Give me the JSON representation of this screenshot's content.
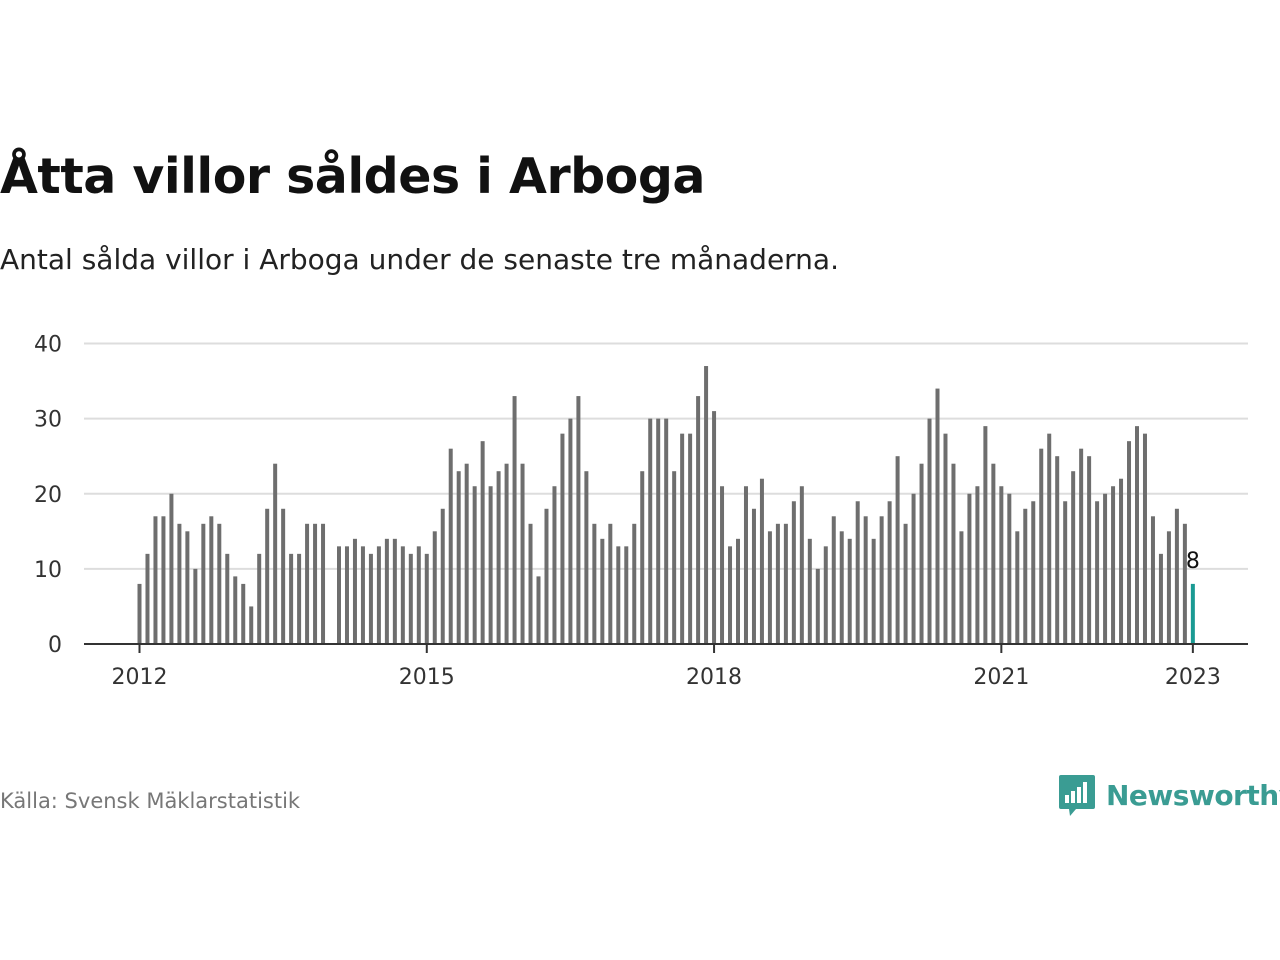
{
  "header": {
    "title": "Åtta villor såldes i Arboga",
    "subtitle": "Antal sålda villor i Arboga under de senaste tre månaderna."
  },
  "footer": {
    "source": "Källa: Svensk Mäklarstatistik",
    "logo_text": "Newsworthy",
    "logo_icon": "bar-chart-speech-bubble-icon"
  },
  "colors": {
    "bar": "#6e6e6e",
    "highlight": "#1a9a93",
    "grid": "#dddddd",
    "axis": "#333333",
    "brand": "#3a9c93"
  },
  "chart_data": {
    "type": "bar",
    "title": "Åtta villor såldes i Arboga",
    "subtitle": "Antal sålda villor i Arboga under de senaste tre månaderna.",
    "xlabel": "",
    "ylabel": "",
    "x_tick_labels": [
      "2012",
      "2015",
      "2018",
      "2021",
      "2023"
    ],
    "y_tick_labels": [
      "0",
      "10",
      "20",
      "30",
      "40"
    ],
    "ylim": [
      0,
      40
    ],
    "grid": true,
    "x": [
      "2012-01",
      "2012-02",
      "2012-03",
      "2012-04",
      "2012-05",
      "2012-06",
      "2012-07",
      "2012-08",
      "2012-09",
      "2012-10",
      "2012-11",
      "2012-12",
      "2013-01",
      "2013-02",
      "2013-03",
      "2013-04",
      "2013-05",
      "2013-06",
      "2013-07",
      "2013-08",
      "2013-09",
      "2013-10",
      "2013-11",
      "2013-12",
      "2014-01",
      "2014-02",
      "2014-03",
      "2014-04",
      "2014-05",
      "2014-06",
      "2014-07",
      "2014-08",
      "2014-09",
      "2014-10",
      "2014-11",
      "2014-12",
      "2015-01",
      "2015-02",
      "2015-03",
      "2015-04",
      "2015-05",
      "2015-06",
      "2015-07",
      "2015-08",
      "2015-09",
      "2015-10",
      "2015-11",
      "2015-12",
      "2016-01",
      "2016-02",
      "2016-03",
      "2016-04",
      "2016-05",
      "2016-06",
      "2016-07",
      "2016-08",
      "2016-09",
      "2016-10",
      "2016-11",
      "2016-12",
      "2017-01",
      "2017-02",
      "2017-03",
      "2017-04",
      "2017-05",
      "2017-06",
      "2017-07",
      "2017-08",
      "2017-09",
      "2017-10",
      "2017-11",
      "2017-12",
      "2018-01",
      "2018-02",
      "2018-03",
      "2018-04",
      "2018-05",
      "2018-06",
      "2018-07",
      "2018-08",
      "2018-09",
      "2018-10",
      "2018-11",
      "2018-12",
      "2019-01",
      "2019-02",
      "2019-03",
      "2019-04",
      "2019-05",
      "2019-06",
      "2019-07",
      "2019-08",
      "2019-09",
      "2019-10",
      "2019-11",
      "2019-12",
      "2020-01",
      "2020-02",
      "2020-03",
      "2020-04",
      "2020-05",
      "2020-06",
      "2020-07",
      "2020-08",
      "2020-09",
      "2020-10",
      "2020-11",
      "2020-12",
      "2021-01",
      "2021-02",
      "2021-03",
      "2021-04",
      "2021-05",
      "2021-06",
      "2021-07",
      "2021-08",
      "2021-09",
      "2021-10",
      "2021-11",
      "2021-12",
      "2022-01",
      "2022-02",
      "2022-03",
      "2022-04",
      "2022-05",
      "2022-06",
      "2022-07",
      "2022-08",
      "2022-09",
      "2022-10",
      "2022-11",
      "2022-12",
      "2023-01"
    ],
    "values": [
      8,
      12,
      17,
      17,
      20,
      16,
      15,
      10,
      16,
      17,
      16,
      12,
      9,
      8,
      5,
      12,
      18,
      24,
      18,
      12,
      12,
      16,
      16,
      16,
      null,
      13,
      13,
      14,
      13,
      12,
      13,
      14,
      14,
      13,
      12,
      13,
      12,
      15,
      18,
      26,
      23,
      24,
      21,
      27,
      21,
      23,
      24,
      33,
      24,
      16,
      9,
      18,
      21,
      28,
      30,
      33,
      23,
      16,
      14,
      16,
      13,
      13,
      16,
      23,
      30,
      30,
      30,
      23,
      28,
      28,
      33,
      37,
      31,
      21,
      13,
      14,
      21,
      18,
      22,
      15,
      16,
      16,
      19,
      21,
      14,
      10,
      13,
      17,
      15,
      14,
      19,
      17,
      14,
      17,
      19,
      25,
      16,
      20,
      24,
      30,
      34,
      28,
      24,
      15,
      20,
      21,
      29,
      24,
      21,
      20,
      15,
      18,
      19,
      26,
      28,
      25,
      19,
      23,
      26,
      25,
      19,
      20,
      21,
      22,
      27,
      29,
      28,
      17,
      12,
      15,
      18,
      16,
      8
    ],
    "highlight_last": true,
    "annotation": "8"
  }
}
